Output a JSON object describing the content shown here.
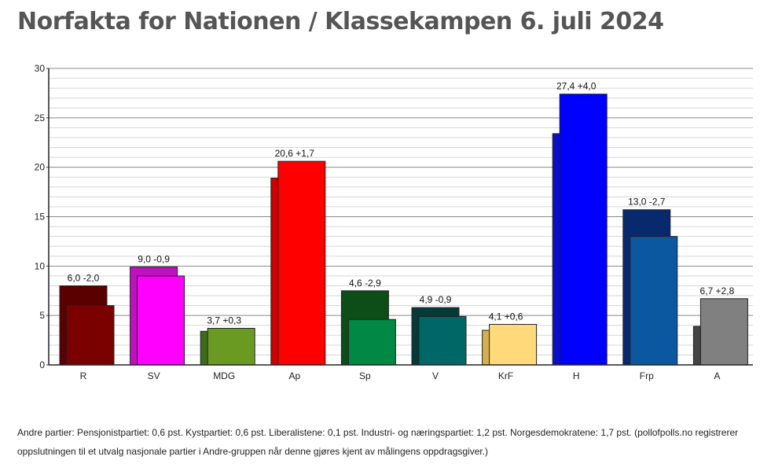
{
  "title": "Norfakta for Nationen / Klassekampen 6. juli 2024",
  "footnote": "Andre partier: Pensjonistpartiet: 0,6 pst. Kystpartiet: 0,6 pst. Liberalistene: 0,1 pst. Industri- og næringspartiet: 1,2 pst. Norgesdemokratene: 1,7 pst. (pollofpolls.no registrerer oppslutningen til et utvalg nasjonale partier i Andre-gruppen når denne gjøres kjent av målingens oppdragsgiver.)",
  "chart_data": {
    "type": "bar",
    "categories": [
      "R",
      "SV",
      "MDG",
      "Ap",
      "Sp",
      "V",
      "KrF",
      "H",
      "Frp",
      "A"
    ],
    "series": [
      {
        "values": [
          8.0,
          9.9,
          3.4,
          18.9,
          7.5,
          5.8,
          3.5,
          23.4,
          15.7,
          3.9
        ]
      },
      {
        "values": [
          6.0,
          9.0,
          3.7,
          20.6,
          4.6,
          4.9,
          4.1,
          27.4,
          13.0,
          6.7
        ]
      }
    ],
    "value_labels": [
      "6,0 -2,0",
      "9,0 -0,9",
      "3,7 +0,3",
      "20,6 +1,7",
      "4,6 -2,9",
      "4,9 -0,9",
      "4,1 +0,6",
      "27,4 +4,0",
      "13,0 -2,7",
      "6,7 +2,8"
    ],
    "colors_previous": [
      "#5a0000",
      "#c010c0",
      "#3d6b1a",
      "#cc0000",
      "#0d4d17",
      "#053a36",
      "#d4b050",
      "#0a10c8",
      "#08296d",
      "#444444"
    ],
    "colors_current": [
      "#7b0000",
      "#ff00ff",
      "#6b9a23",
      "#ff0000",
      "#008844",
      "#006666",
      "#ffd97a",
      "#0000ff",
      "#0b57a0",
      "#808080"
    ],
    "ylim": [
      0,
      30
    ],
    "yticks": [
      "0",
      "5",
      "10",
      "15",
      "20",
      "25",
      "30"
    ],
    "grid": true
  }
}
